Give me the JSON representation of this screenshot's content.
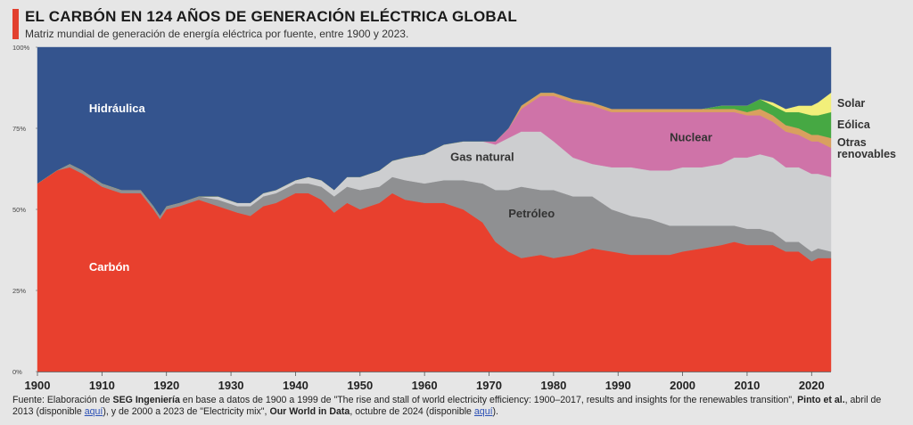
{
  "header": {
    "title": "EL CARBÓN EN 124 AÑOS DE GENERACIÓN ELÉCTRICA GLOBAL",
    "subtitle": "Matriz mundial de generación de energía eléctrica por fuente, entre 1900 y 2023."
  },
  "source": {
    "p1": "Fuente: Elaboración de ",
    "b1": "SEG Ingeniería",
    "p2": " en base a datos de 1900 a 1999 de \"The rise and stall of world electricity efficiency: 1900–2017, results and insights for the renewables transition\", ",
    "b2": "Pinto et al.",
    "p3": ", abril de 2013 (disponible ",
    "link1": "aquí",
    "p4": "), y de 2000 a 2023 de \"Electricity mix\", ",
    "b3": "Our World in Data",
    "p5": ", octubre de 2024 (disponible ",
    "link2": "aquí",
    "p6": ")."
  },
  "chart_data": {
    "type": "area",
    "stacked": true,
    "normalized": true,
    "x": [
      1900,
      1903,
      1905,
      1907,
      1910,
      1913,
      1916,
      1918,
      1919,
      1920,
      1922,
      1925,
      1928,
      1931,
      1933,
      1935,
      1937,
      1940,
      1942,
      1944,
      1946,
      1948,
      1950,
      1953,
      1955,
      1957,
      1960,
      1963,
      1966,
      1969,
      1971,
      1973,
      1975,
      1978,
      1980,
      1983,
      1986,
      1989,
      1992,
      1995,
      1998,
      2000,
      2003,
      2006,
      2008,
      2010,
      2012,
      2014,
      2016,
      2018,
      2020,
      2021,
      2023
    ],
    "series": [
      {
        "name": "Carbón",
        "color": "#e8402e",
        "values": [
          58,
          62,
          63,
          61,
          57,
          55,
          55,
          50,
          47,
          50,
          51,
          53,
          51,
          49,
          48,
          51,
          52,
          55,
          55,
          53,
          49,
          52,
          50,
          52,
          55,
          53,
          52,
          52,
          50,
          46,
          40,
          37,
          35,
          36,
          35,
          36,
          38,
          37,
          36,
          36,
          36,
          37,
          38,
          39,
          40,
          39,
          39,
          39,
          37,
          37,
          34,
          35,
          35
        ]
      },
      {
        "name": "Petróleo",
        "color": "#8f9092",
        "values": [
          0,
          0,
          1,
          1,
          1,
          1,
          1,
          1,
          1,
          1,
          1,
          1,
          2,
          2,
          3,
          3,
          3,
          3,
          3,
          4,
          5,
          5,
          6,
          5,
          5,
          6,
          6,
          7,
          9,
          12,
          16,
          19,
          22,
          20,
          21,
          18,
          16,
          13,
          12,
          11,
          9,
          8,
          7,
          6,
          5,
          5,
          5,
          4,
          3,
          3,
          3,
          3,
          2
        ]
      },
      {
        "name": "Gas natural",
        "color": "#cdced0",
        "values": [
          0,
          0,
          0,
          0,
          0,
          0,
          0,
          0,
          0,
          0,
          0,
          0,
          1,
          1,
          1,
          1,
          1,
          1,
          2,
          2,
          2,
          3,
          4,
          5,
          5,
          7,
          9,
          11,
          12,
          13,
          14,
          16,
          17,
          18,
          15,
          12,
          10,
          13,
          15,
          15,
          17,
          18,
          18,
          19,
          21,
          22,
          23,
          23,
          23,
          23,
          24,
          23,
          23
        ]
      },
      {
        "name": "Nuclear",
        "color": "#cf73a8",
        "values": [
          0,
          0,
          0,
          0,
          0,
          0,
          0,
          0,
          0,
          0,
          0,
          0,
          0,
          0,
          0,
          0,
          0,
          0,
          0,
          0,
          0,
          0,
          0,
          0,
          0,
          0,
          0,
          0,
          0,
          0,
          1,
          3,
          7,
          11,
          14,
          17,
          18,
          17,
          17,
          18,
          18,
          17,
          17,
          16,
          14,
          13,
          12,
          11,
          11,
          10,
          10,
          10,
          9
        ]
      },
      {
        "name": "Otras renovables",
        "color": "#d9a05f",
        "values": [
          0,
          0,
          0,
          0,
          0,
          0,
          0,
          0,
          0,
          0,
          0,
          0,
          0,
          0,
          0,
          0,
          0,
          0,
          0,
          0,
          0,
          0,
          0,
          0,
          0,
          0,
          0,
          0,
          0,
          0,
          0,
          0,
          1,
          1,
          1,
          1,
          1,
          1,
          1,
          1,
          1,
          1,
          1,
          1,
          1,
          1,
          2,
          2,
          2,
          2,
          2,
          2,
          3
        ]
      },
      {
        "name": "Eólica",
        "color": "#46a843",
        "values": [
          0,
          0,
          0,
          0,
          0,
          0,
          0,
          0,
          0,
          0,
          0,
          0,
          0,
          0,
          0,
          0,
          0,
          0,
          0,
          0,
          0,
          0,
          0,
          0,
          0,
          0,
          0,
          0,
          0,
          0,
          0,
          0,
          0,
          0,
          0,
          0,
          0,
          0,
          0,
          0,
          0,
          0,
          0,
          1,
          1,
          2,
          3,
          3,
          4,
          5,
          6,
          6,
          8
        ]
      },
      {
        "name": "Solar",
        "color": "#f2ef7a",
        "values": [
          0,
          0,
          0,
          0,
          0,
          0,
          0,
          0,
          0,
          0,
          0,
          0,
          0,
          0,
          0,
          0,
          0,
          0,
          0,
          0,
          0,
          0,
          0,
          0,
          0,
          0,
          0,
          0,
          0,
          0,
          0,
          0,
          0,
          0,
          0,
          0,
          0,
          0,
          0,
          0,
          0,
          0,
          0,
          0,
          0,
          0,
          0,
          1,
          1,
          2,
          3,
          4,
          6
        ]
      },
      {
        "name": "Hidráulica",
        "color": "#34548e",
        "values": [
          42,
          38,
          36,
          38,
          42,
          44,
          44,
          49,
          52,
          49,
          48,
          46,
          46,
          48,
          48,
          45,
          44,
          41,
          40,
          41,
          44,
          40,
          40,
          38,
          35,
          34,
          33,
          30,
          29,
          29,
          29,
          25,
          18,
          14,
          14,
          16,
          17,
          19,
          19,
          19,
          19,
          19,
          19,
          18,
          18,
          18,
          16,
          17,
          19,
          18,
          18,
          17,
          14
        ]
      }
    ],
    "xlim": [
      1900,
      2023
    ],
    "ylim": [
      0,
      100
    ],
    "x_ticks": [
      1900,
      1910,
      1920,
      1930,
      1940,
      1950,
      1960,
      1970,
      1980,
      1990,
      2000,
      2010,
      2020
    ],
    "y_ticks": [
      0,
      25,
      50,
      75,
      100
    ],
    "y_tick_labels": [
      "0%",
      "25%",
      "50%",
      "75%",
      "100%"
    ],
    "inside_labels": [
      {
        "series": "Hidráulica",
        "text": "Hidráulica",
        "x": 1908,
        "y": 80,
        "color": "#ffffff"
      },
      {
        "series": "Carbón",
        "text": "Carbón",
        "x": 1908,
        "y": 31,
        "color": "#ffffff"
      },
      {
        "series": "Gas natural",
        "text": "Gas natural",
        "x": 1964,
        "y": 65,
        "color": "#333333"
      },
      {
        "series": "Petróleo",
        "text": "Petróleo",
        "x": 1973,
        "y": 47.5,
        "color": "#333333"
      },
      {
        "series": "Nuclear",
        "text": "Nuclear",
        "x": 1998,
        "y": 71,
        "color": "#333333"
      }
    ],
    "right_labels": [
      "Solar",
      "Eólica",
      "Otras",
      "renovables"
    ]
  }
}
